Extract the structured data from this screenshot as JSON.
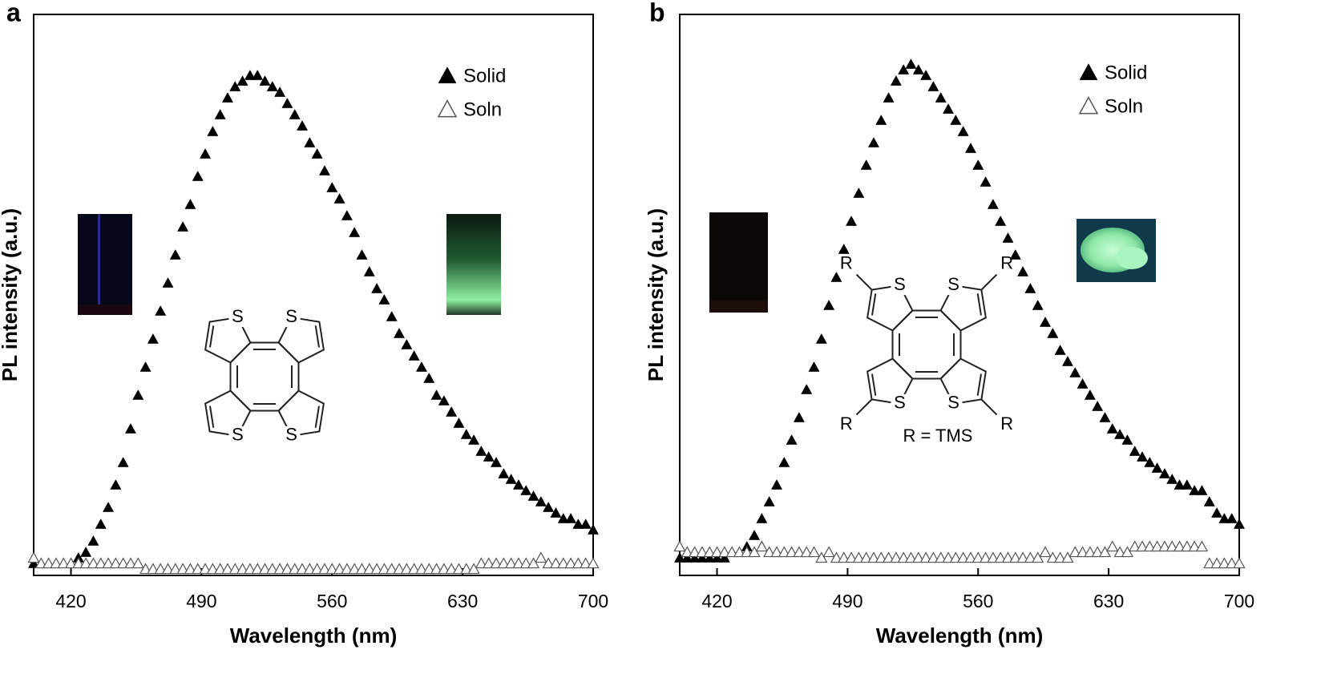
{
  "chart_data": [
    {
      "type": "scatter",
      "panel_label": "a",
      "xlabel": "Wavelength (nm)",
      "ylabel": "PL intensity (a.u.)",
      "xlim": [
        400,
        700
      ],
      "xticks": [
        420,
        490,
        560,
        630,
        700
      ],
      "ylim": [
        0,
        1
      ],
      "structure_labels": [
        "S"
      ],
      "x": [
        400,
        404,
        408,
        412,
        416,
        420,
        424,
        428,
        432,
        436,
        440,
        444,
        448,
        452,
        456,
        460,
        464,
        468,
        472,
        476,
        480,
        484,
        488,
        492,
        496,
        500,
        504,
        508,
        512,
        516,
        520,
        524,
        528,
        532,
        536,
        540,
        544,
        548,
        552,
        556,
        560,
        564,
        568,
        572,
        576,
        580,
        584,
        588,
        592,
        596,
        600,
        604,
        608,
        612,
        616,
        620,
        624,
        628,
        632,
        636,
        640,
        644,
        648,
        652,
        656,
        660,
        664,
        668,
        672,
        676,
        680,
        684,
        688,
        692,
        696,
        700
      ],
      "series": [
        {
          "name": "Solid",
          "color": "#000000",
          "marker": "filled",
          "values": [
            0.02,
            0.02,
            0.02,
            0.02,
            0.02,
            0.02,
            0.03,
            0.04,
            0.06,
            0.09,
            0.12,
            0.16,
            0.2,
            0.26,
            0.32,
            0.37,
            0.42,
            0.47,
            0.52,
            0.57,
            0.62,
            0.66,
            0.71,
            0.75,
            0.79,
            0.82,
            0.85,
            0.87,
            0.88,
            0.89,
            0.89,
            0.88,
            0.87,
            0.86,
            0.84,
            0.82,
            0.8,
            0.77,
            0.75,
            0.72,
            0.69,
            0.67,
            0.64,
            0.61,
            0.57,
            0.54,
            0.51,
            0.49,
            0.46,
            0.43,
            0.41,
            0.39,
            0.37,
            0.35,
            0.32,
            0.31,
            0.29,
            0.27,
            0.25,
            0.24,
            0.22,
            0.21,
            0.2,
            0.18,
            0.17,
            0.16,
            0.15,
            0.14,
            0.13,
            0.12,
            0.11,
            0.1,
            0.1,
            0.09,
            0.09,
            0.08
          ]
        },
        {
          "name": "Soln",
          "color": "#555555",
          "marker": "open",
          "values": [
            0.03,
            0.02,
            0.02,
            0.02,
            0.02,
            0.02,
            0.02,
            0.02,
            0.02,
            0.02,
            0.02,
            0.02,
            0.02,
            0.02,
            0.02,
            0.01,
            0.01,
            0.01,
            0.01,
            0.01,
            0.01,
            0.01,
            0.01,
            0.01,
            0.01,
            0.01,
            0.01,
            0.01,
            0.01,
            0.01,
            0.01,
            0.01,
            0.01,
            0.01,
            0.01,
            0.01,
            0.01,
            0.01,
            0.01,
            0.01,
            0.01,
            0.01,
            0.01,
            0.01,
            0.01,
            0.01,
            0.01,
            0.01,
            0.01,
            0.01,
            0.01,
            0.01,
            0.01,
            0.01,
            0.01,
            0.01,
            0.01,
            0.01,
            0.01,
            0.01,
            0.02,
            0.02,
            0.02,
            0.02,
            0.02,
            0.02,
            0.02,
            0.02,
            0.03,
            0.02,
            0.02,
            0.02,
            0.02,
            0.02,
            0.02,
            0.02
          ]
        }
      ]
    },
    {
      "type": "scatter",
      "panel_label": "b",
      "xlabel": "Wavelength (nm)",
      "ylabel": "PL intensity (a.u.)",
      "xlim": [
        400,
        700
      ],
      "xticks": [
        420,
        490,
        560,
        630,
        700
      ],
      "ylim": [
        0,
        1
      ],
      "structure_labels": [
        "S",
        "R"
      ],
      "annotation": "R = TMS",
      "x": [
        400,
        404,
        408,
        412,
        416,
        420,
        424,
        428,
        432,
        436,
        440,
        444,
        448,
        452,
        456,
        460,
        464,
        468,
        472,
        476,
        480,
        484,
        488,
        492,
        496,
        500,
        504,
        508,
        512,
        516,
        520,
        524,
        528,
        532,
        536,
        540,
        544,
        548,
        552,
        556,
        560,
        564,
        568,
        572,
        576,
        580,
        584,
        588,
        592,
        596,
        600,
        604,
        608,
        612,
        616,
        620,
        624,
        628,
        632,
        636,
        640,
        644,
        648,
        652,
        656,
        660,
        664,
        668,
        672,
        676,
        680,
        684,
        688,
        692,
        696,
        700
      ],
      "series": [
        {
          "name": "Solid",
          "color": "#000000",
          "marker": "filled",
          "values": [
            0.03,
            0.03,
            0.03,
            0.03,
            0.03,
            0.03,
            0.03,
            0.04,
            0.04,
            0.05,
            0.07,
            0.1,
            0.13,
            0.16,
            0.2,
            0.24,
            0.28,
            0.33,
            0.37,
            0.42,
            0.48,
            0.53,
            0.58,
            0.63,
            0.68,
            0.73,
            0.77,
            0.81,
            0.85,
            0.88,
            0.9,
            0.91,
            0.9,
            0.89,
            0.87,
            0.85,
            0.83,
            0.81,
            0.79,
            0.76,
            0.73,
            0.7,
            0.66,
            0.63,
            0.6,
            0.57,
            0.54,
            0.51,
            0.48,
            0.45,
            0.43,
            0.4,
            0.38,
            0.36,
            0.34,
            0.32,
            0.3,
            0.28,
            0.26,
            0.25,
            0.24,
            0.22,
            0.21,
            0.2,
            0.19,
            0.18,
            0.17,
            0.16,
            0.16,
            0.15,
            0.15,
            0.13,
            0.11,
            0.1,
            0.1,
            0.09
          ]
        },
        {
          "name": "Soln",
          "color": "#555555",
          "marker": "open",
          "values": [
            0.05,
            0.04,
            0.04,
            0.04,
            0.04,
            0.04,
            0.04,
            0.04,
            0.04,
            0.04,
            0.04,
            0.05,
            0.04,
            0.04,
            0.04,
            0.04,
            0.04,
            0.04,
            0.04,
            0.03,
            0.04,
            0.03,
            0.03,
            0.03,
            0.03,
            0.03,
            0.03,
            0.03,
            0.03,
            0.03,
            0.03,
            0.03,
            0.03,
            0.03,
            0.03,
            0.03,
            0.03,
            0.03,
            0.03,
            0.03,
            0.03,
            0.03,
            0.03,
            0.03,
            0.03,
            0.03,
            0.03,
            0.03,
            0.03,
            0.04,
            0.03,
            0.03,
            0.03,
            0.04,
            0.04,
            0.04,
            0.04,
            0.04,
            0.05,
            0.04,
            0.04,
            0.05,
            0.05,
            0.05,
            0.05,
            0.05,
            0.05,
            0.05,
            0.05,
            0.05,
            0.05,
            0.02,
            0.02,
            0.02,
            0.02,
            0.02
          ]
        }
      ]
    }
  ]
}
